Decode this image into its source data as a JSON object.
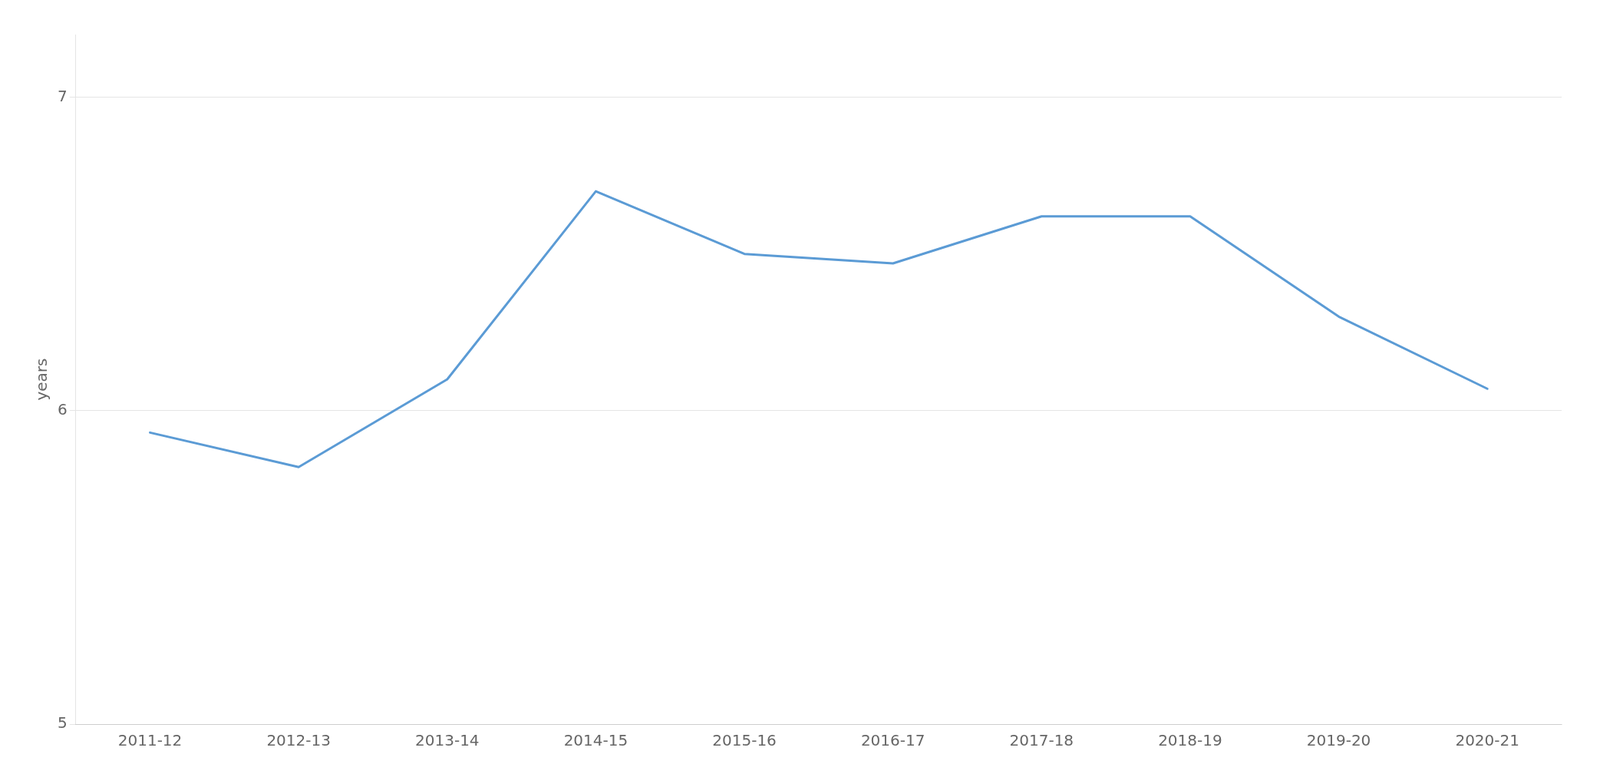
{
  "chart_data": {
    "type": "line",
    "ylabel": "years",
    "categories": [
      "2011-12",
      "2012-13",
      "2013-14",
      "2014-15",
      "2015-16",
      "2016-17",
      "2017-18",
      "2018-19",
      "2019-20",
      "2020-21"
    ],
    "values": [
      5.93,
      5.82,
      6.1,
      6.7,
      6.5,
      6.47,
      6.62,
      6.62,
      6.3,
      6.07
    ],
    "color": "#5b9bd5",
    "ylim": [
      5,
      7.2
    ],
    "yticks": [
      5,
      6,
      7
    ],
    "grid": true
  }
}
